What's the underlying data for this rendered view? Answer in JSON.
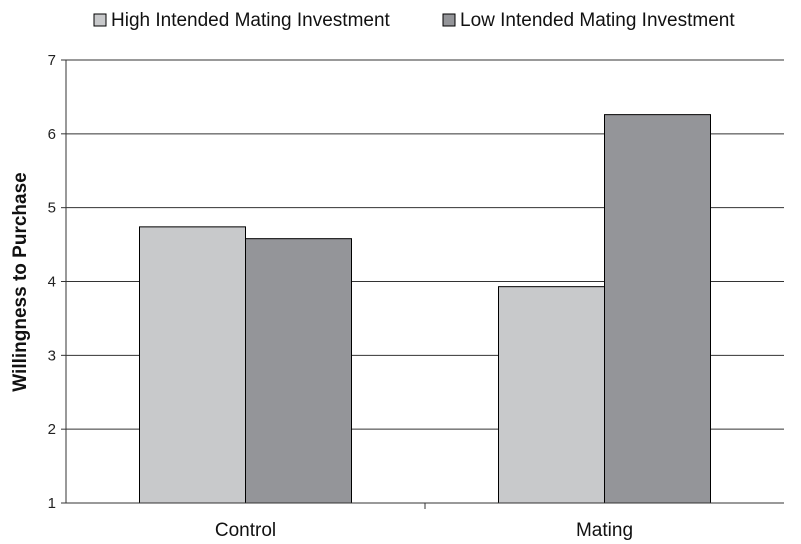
{
  "chart_data": {
    "type": "bar",
    "title": "",
    "xlabel": "",
    "ylabel": "Willingness to Purchase",
    "categories": [
      "Control",
      "Mating"
    ],
    "series": [
      {
        "name": "High Intended Mating Investment",
        "values": [
          4.74,
          3.93
        ],
        "color": "#c8c9cb"
      },
      {
        "name": "Low Intended Mating Investment",
        "values": [
          4.58,
          6.26
        ],
        "color": "#949599"
      }
    ],
    "ylim": [
      1,
      7
    ],
    "yticks": [
      1,
      2,
      3,
      4,
      5,
      6,
      7
    ],
    "grid": true,
    "legend": "top"
  }
}
